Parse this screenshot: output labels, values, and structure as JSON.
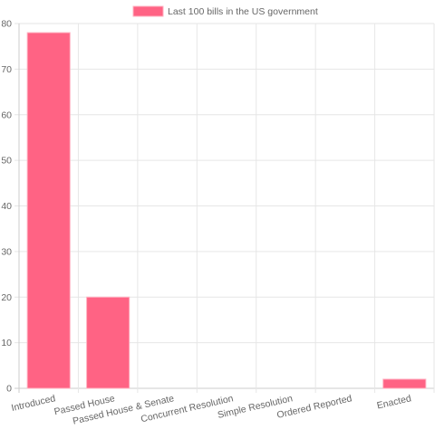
{
  "chart_data": {
    "type": "bar",
    "categories": [
      "Introduced",
      "Passed House",
      "Passed House & Senate",
      "Concurrent Resolution",
      "Simple Resolution",
      "Ordered Reported",
      "Enacted"
    ],
    "series": [
      {
        "name": "Last 100 bills in the US government",
        "values": [
          78,
          20,
          0,
          0,
          0,
          0,
          2
        ]
      }
    ],
    "ylim": [
      0,
      80
    ],
    "yticks": [
      0,
      10,
      20,
      30,
      40,
      50,
      60,
      70,
      80
    ],
    "grid": true,
    "legend_position": "top",
    "colors": {
      "bar_fill": "#ff6384",
      "bar_stroke": "#ffb1c1",
      "grid": "#e6e6e6",
      "axis": "#cccccc",
      "text": "#666666"
    }
  }
}
